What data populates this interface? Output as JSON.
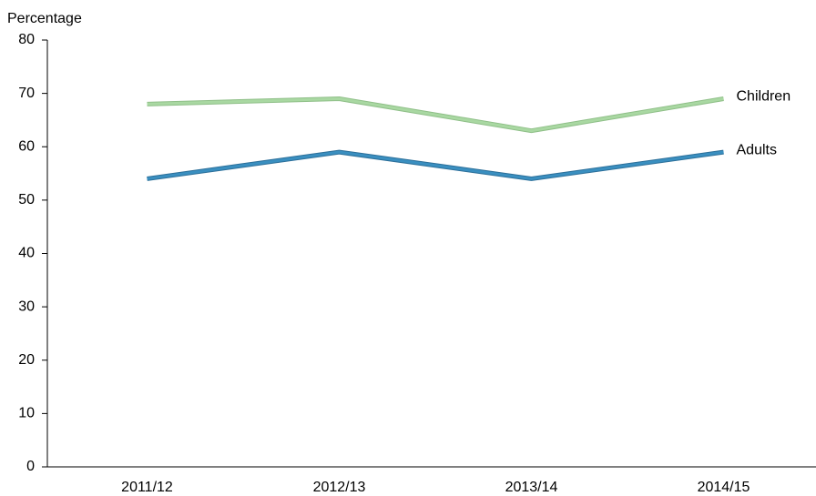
{
  "chart_data": {
    "type": "line",
    "y_label": "Percentage",
    "categories": [
      "2011/12",
      "2012/13",
      "2013/14",
      "2014/15"
    ],
    "series": [
      {
        "name": "Children",
        "color": "#a9d8a2",
        "values": [
          68,
          69,
          63,
          69
        ]
      },
      {
        "name": "Adults",
        "color": "#3a8fc0",
        "values": [
          54,
          59,
          54,
          59
        ]
      }
    ],
    "ylim": [
      0,
      80
    ],
    "yticks": [
      0,
      10,
      20,
      30,
      40,
      50,
      60,
      70,
      80
    ]
  }
}
